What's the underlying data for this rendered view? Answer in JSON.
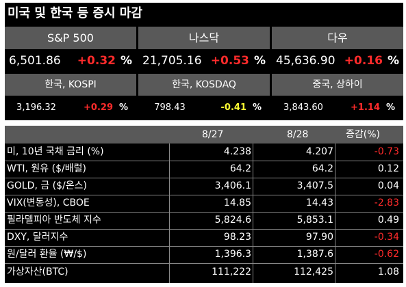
{
  "title": "미국 및 한국 등 증시 마감",
  "us_indices": [
    {
      "name": "S&P 500",
      "value": "6,501.86",
      "change": "+0.32",
      "pct": "%"
    },
    {
      "name": "나스닥",
      "value": "21,705.16",
      "change": "+0.53",
      "pct": "%"
    },
    {
      "name": "다우",
      "value": "45,636.90",
      "change": "+0.16",
      "pct": "%"
    }
  ],
  "asia_indices": [
    {
      "name": "한국, KOSPI",
      "value": "3,196.32",
      "change": "+0.29",
      "pct": "%",
      "color": "#ff2b2b"
    },
    {
      "name": "한국, KOSDAQ",
      "value": "798.43",
      "change": "-0.41",
      "pct": "%",
      "color": "#ffff33"
    },
    {
      "name": "중국, 상하이",
      "value": "3,843.60",
      "change": "+1.14",
      "pct": "%",
      "color": "#ff2b2b"
    }
  ],
  "table": {
    "headers": [
      "",
      "8/27",
      "8/28",
      "증감(%)"
    ],
    "rows": [
      {
        "label": "미, 10년 국채 금리 (%)",
        "d1": "4.238",
        "d2": "4.207",
        "chg": "-0.73",
        "color": "#ff2b2b"
      },
      {
        "label": "WTI, 원유 ($/배럴)",
        "d1": "64.2",
        "d2": "64.2",
        "chg": "0.12",
        "color": "#ffffff"
      },
      {
        "label": "GOLD, 금 ($/온스)",
        "d1": "3,406.1",
        "d2": "3,407.5",
        "chg": "0.04",
        "color": "#ffffff"
      },
      {
        "label": "VIX(변동성), CBOE",
        "d1": "14.85",
        "d2": "14.43",
        "chg": "-2.83",
        "color": "#ff2b2b"
      },
      {
        "label": "필라델피아 반도체 지수",
        "d1": "5,824.6",
        "d2": "5,853.1",
        "chg": "0.49",
        "color": "#ffffff"
      },
      {
        "label": "DXY, 달러지수",
        "d1": "98.23",
        "d2": "97.90",
        "chg": "-0.34",
        "color": "#ff2b2b"
      },
      {
        "label": "원/달러 환율 (₩/$)",
        "d1": "1,396.3",
        "d2": "1,387.6",
        "chg": "-0.62",
        "color": "#ff2b2b"
      },
      {
        "label": "가상자산(BTC)",
        "d1": "111,222",
        "d2": "112,425",
        "chg": "1.08",
        "color": "#ffffff"
      }
    ]
  },
  "colors": {
    "up": "#ff2b2b",
    "down_yellow": "#ffff33",
    "header_bg": "#595959",
    "panel_bg": "#000000"
  }
}
